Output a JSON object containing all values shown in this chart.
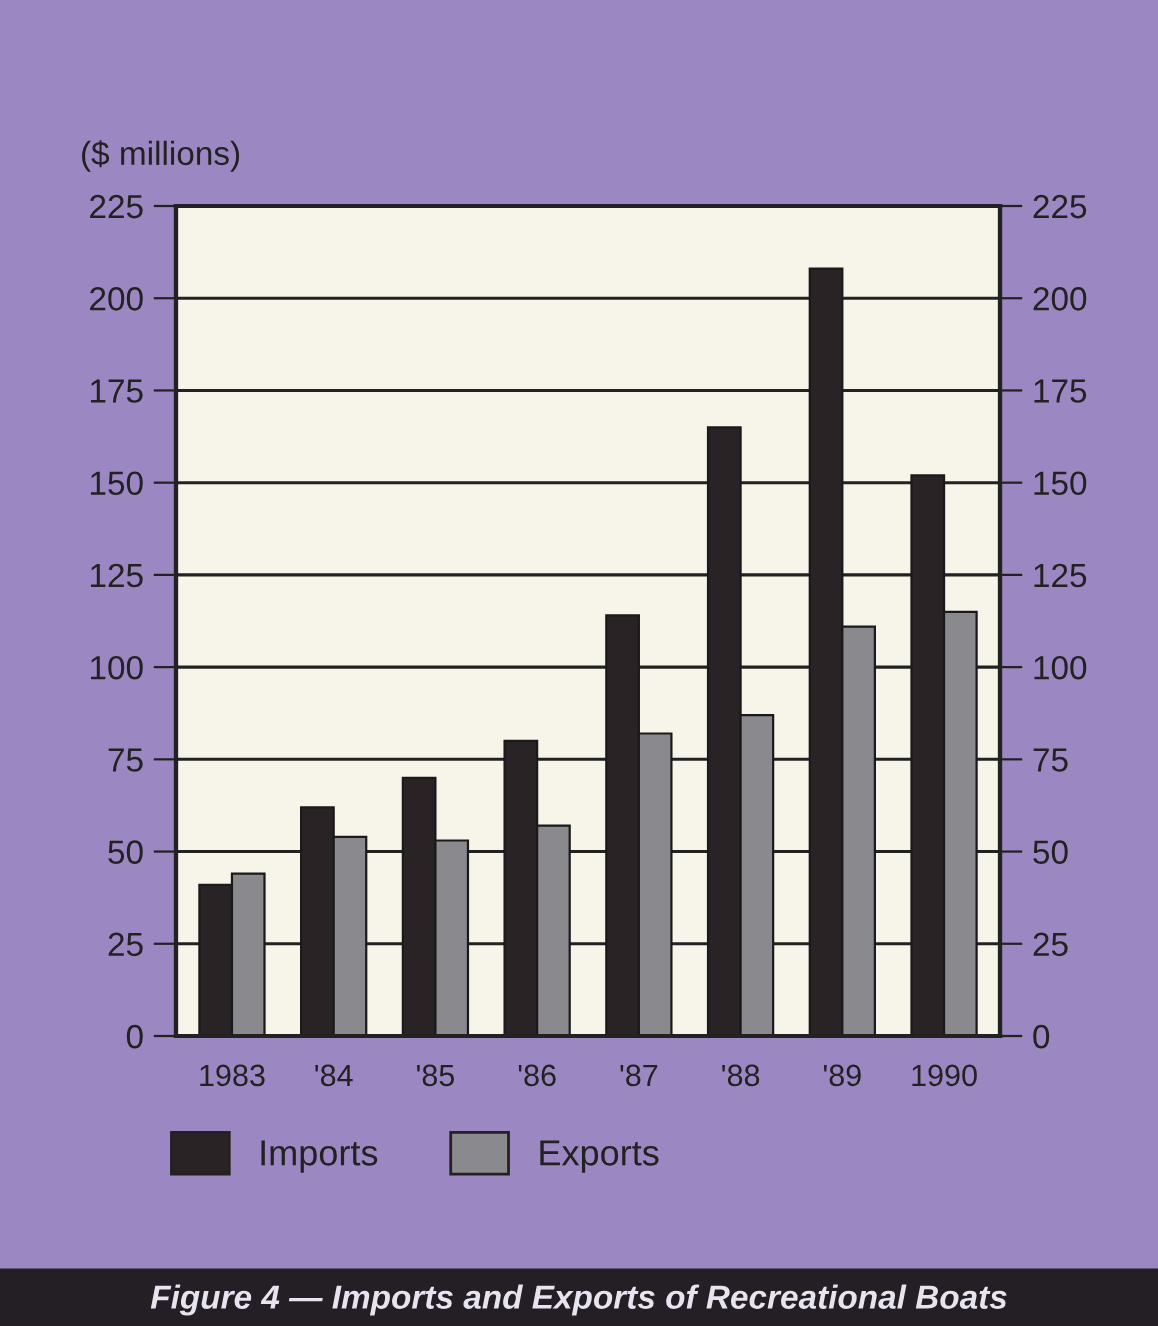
{
  "chart_data": {
    "type": "bar",
    "title": "Figure 4 — Imports and Exports of Recreational Boats",
    "ylabel": "($ millions)",
    "categories": [
      "1983",
      "'84",
      "'85",
      "'86",
      "'87",
      "'88",
      "'89",
      "1990"
    ],
    "series": [
      {
        "name": "Imports",
        "color": "#2a2326",
        "values": [
          41,
          62,
          70,
          80,
          114,
          165,
          208,
          152
        ]
      },
      {
        "name": "Exports",
        "color": "#8a8a8e",
        "values": [
          44,
          54,
          53,
          57,
          82,
          87,
          111,
          115
        ]
      }
    ],
    "ylim": [
      0,
      225
    ],
    "yticks": [
      0,
      25,
      50,
      75,
      100,
      125,
      150,
      175,
      200,
      225
    ],
    "y2lim": [
      0,
      225
    ],
    "y2ticks": [
      0,
      25,
      50,
      75,
      100,
      125,
      150,
      175,
      200,
      225
    ],
    "grid": "y",
    "legend": "bottom"
  }
}
